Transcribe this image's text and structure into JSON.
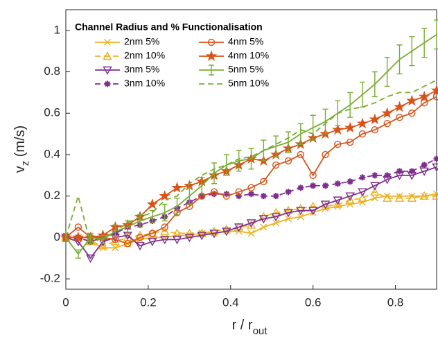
{
  "chart_data": {
    "type": "line",
    "legend_title": "Channel Radius and % Functionalisation",
    "xlabel": [
      "r / r",
      "out"
    ],
    "ylabel": [
      "v",
      "z",
      " (m/s)"
    ],
    "xlim": [
      0,
      0.9
    ],
    "ylim": [
      -0.25,
      1.1
    ],
    "xticks": [
      0,
      0.2,
      0.4,
      0.6,
      0.8
    ],
    "yticks": [
      -0.2,
      0,
      0.2,
      0.4,
      0.6,
      0.8,
      1
    ],
    "legend": "upper left",
    "x": [
      0,
      0.03,
      0.06,
      0.09,
      0.12,
      0.15,
      0.18,
      0.21,
      0.24,
      0.27,
      0.3,
      0.33,
      0.36,
      0.39,
      0.42,
      0.45,
      0.48,
      0.51,
      0.54,
      0.57,
      0.6,
      0.63,
      0.66,
      0.69,
      0.72,
      0.75,
      0.78,
      0.81,
      0.84,
      0.87,
      0.9
    ],
    "series": [
      {
        "name": "2nm 5%",
        "color": "#EDB120",
        "marker": "x",
        "dashed": false,
        "values": [
          0,
          0,
          -0.02,
          -0.05,
          -0.05,
          -0.03,
          -0.01,
          0,
          0,
          0.01,
          0.01,
          0.02,
          0.02,
          0.03,
          0.03,
          0.02,
          0.05,
          0.07,
          0.09,
          0.1,
          0.12,
          0.14,
          0.15,
          0.16,
          0.17,
          0.19,
          0.2,
          0.2,
          0.2,
          0.2,
          0.21
        ]
      },
      {
        "name": "2nm 10%",
        "color": "#EDB120",
        "marker": "triangle",
        "dashed": true,
        "values": [
          0,
          0,
          -0.02,
          -0.04,
          -0.02,
          0,
          0.01,
          0.02,
          0.03,
          0.02,
          0.02,
          0.02,
          0.03,
          0.04,
          0.05,
          0.06,
          0.1,
          0.12,
          0.13,
          0.14,
          0.15,
          0.15,
          0.16,
          0.18,
          0.19,
          0.22,
          0.19,
          0.19,
          0.19,
          0.2,
          0.2
        ]
      },
      {
        "name": "3nm 5%",
        "color": "#7E2F8E",
        "marker": "triangle-down",
        "dashed": false,
        "values": [
          0,
          -0.02,
          -0.1,
          -0.02,
          0,
          0.01,
          -0.04,
          -0.02,
          -0.01,
          -0.01,
          0,
          0.01,
          0.02,
          0.03,
          0.05,
          0.07,
          0.09,
          0.1,
          0.12,
          0.13,
          0.13,
          0.16,
          0.18,
          0.2,
          0.22,
          0.25,
          0.28,
          0.3,
          0.3,
          0.32,
          0.34
        ]
      },
      {
        "name": "3nm  10%",
        "color": "#7E2F8E",
        "marker": "asterisk",
        "dashed": true,
        "values": [
          0,
          0,
          -0.02,
          0,
          0.02,
          0.05,
          0.06,
          0.08,
          0.1,
          0.14,
          0.17,
          0.2,
          0.21,
          0.21,
          0.2,
          0.21,
          0.2,
          0.2,
          0.22,
          0.24,
          0.25,
          0.25,
          0.26,
          0.27,
          0.29,
          0.3,
          0.3,
          0.32,
          0.32,
          0.35,
          0.38
        ]
      },
      {
        "name": "4nm 5%",
        "color": "#D95319",
        "marker": "circle",
        "dashed": false,
        "values": [
          0,
          0.05,
          0,
          0,
          -0.01,
          -0.03,
          0,
          0.02,
          0.05,
          0.12,
          0.15,
          0.2,
          0.22,
          0.2,
          0.22,
          0.24,
          0.27,
          0.35,
          0.37,
          0.4,
          0.3,
          0.4,
          0.45,
          0.46,
          0.5,
          0.52,
          0.55,
          0.58,
          0.6,
          0.65,
          0.68
        ]
      },
      {
        "name": "4nm 10%",
        "color": "#D95319",
        "marker": "star",
        "dashed": false,
        "values": [
          0,
          0,
          0,
          0.01,
          0.05,
          0.06,
          0.1,
          0.16,
          0.2,
          0.24,
          0.25,
          0.27,
          0.3,
          0.32,
          0.35,
          0.38,
          0.37,
          0.4,
          0.43,
          0.45,
          0.48,
          0.5,
          0.52,
          0.53,
          0.55,
          0.57,
          0.6,
          0.63,
          0.66,
          0.68,
          0.71
        ]
      },
      {
        "name": "5nm 5%",
        "color": "#77AC30",
        "marker": "none",
        "dashed": false,
        "values": [
          0,
          -0.08,
          0,
          -0.01,
          0.03,
          0.05,
          0.08,
          0.1,
          0.12,
          0.15,
          0.2,
          0.25,
          0.31,
          0.35,
          0.37,
          0.38,
          0.42,
          0.44,
          0.46,
          0.5,
          0.53,
          0.56,
          0.6,
          0.64,
          0.69,
          0.74,
          0.8,
          0.86,
          0.9,
          0.94,
          0.98
        ],
        "errors": [
          0.02,
          0.02,
          0.02,
          0.02,
          0.03,
          0.03,
          0.03,
          0.03,
          0.04,
          0.04,
          0.04,
          0.04,
          0.05,
          0.05,
          0.05,
          0.05,
          0.05,
          0.05,
          0.05,
          0.05,
          0.06,
          0.06,
          0.06,
          0.06,
          0.06,
          0.06,
          0.07,
          0.07,
          0.07,
          0.07,
          0.07
        ]
      },
      {
        "name": "5nm 10%",
        "color": "#77AC30",
        "marker": "none",
        "dashed": true,
        "values": [
          0,
          0.2,
          -0.03,
          0,
          0.03,
          0.07,
          0.1,
          0.12,
          0.18,
          0.2,
          0.26,
          0.3,
          0.33,
          0.35,
          0.38,
          0.39,
          0.42,
          0.45,
          0.48,
          0.52,
          0.5,
          0.55,
          0.6,
          0.62,
          0.63,
          0.65,
          0.68,
          0.7,
          0.7,
          0.73,
          0.76
        ]
      }
    ]
  }
}
